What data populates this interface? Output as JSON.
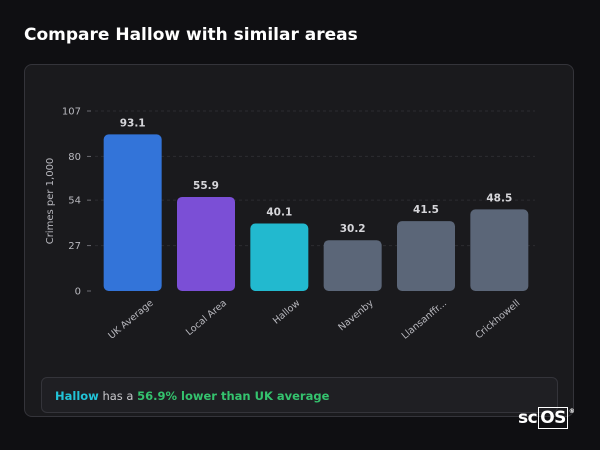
{
  "header": {
    "title": "Compare Hallow with similar areas"
  },
  "chart_data": {
    "type": "bar",
    "title": "",
    "xlabel": "",
    "ylabel": "Crimes per 1,000",
    "ylim": [
      0,
      107
    ],
    "yticks": [
      0,
      27,
      54,
      80,
      107
    ],
    "grid": true,
    "categories": [
      "UK Average",
      "Local Area",
      "Hallow",
      "Navenby",
      "Llansanffr...",
      "Crickhowell"
    ],
    "values": [
      93.1,
      55.9,
      40.1,
      30.2,
      41.5,
      48.5
    ],
    "value_labels": [
      "93.1",
      "55.9",
      "40.1",
      "30.2",
      "41.5",
      "48.5"
    ],
    "colors": [
      "#3374d9",
      "#7b4fd6",
      "#22b9cf",
      "#5b6678",
      "#5b6678",
      "#5b6678"
    ]
  },
  "summary": {
    "place": "Hallow",
    "middle": " has a ",
    "stat": "56.9% lower than UK average"
  },
  "logo": {
    "prefix": "sc",
    "boxed": "OS",
    "mark": "®"
  },
  "colors": {
    "background": "#0f0f12",
    "card": "#1a1a1d",
    "accent_place": "#22c4d8",
    "accent_stat": "#34c36e"
  }
}
